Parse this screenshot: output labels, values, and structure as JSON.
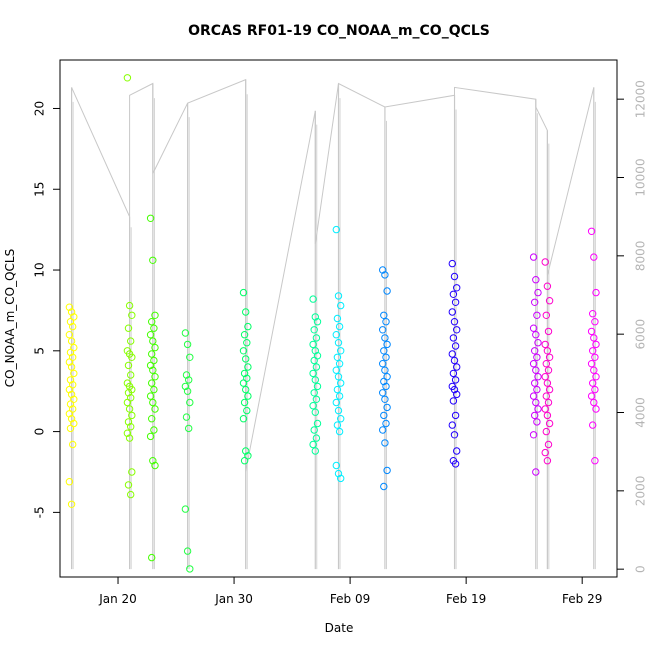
{
  "chart_data": {
    "type": "scatter",
    "title": "ORCAS RF01-19 CO_NOAA_m_CO_QCLS",
    "xlabel": "Date",
    "ylabel": "CO_NOAA_m_CO_QCLS",
    "x_ticks": [
      "Jan 20",
      "Jan 30",
      "Feb 09",
      "Feb 19",
      "Feb 29"
    ],
    "x_range": [
      "2016-01-15",
      "2016-03-03"
    ],
    "ylim": [
      -9,
      23
    ],
    "y_ticks": [
      -5,
      0,
      5,
      10,
      15,
      20
    ],
    "y2lim": [
      -200,
      13000
    ],
    "y2_ticks": [
      0,
      2000,
      4000,
      6000,
      8000,
      10000,
      12000
    ],
    "secondary_series_note": "altitude trace (gray line)",
    "colors": {
      "altitude_line": "#c8c8c8",
      "flights": [
        "#ffff00",
        "#88ff00",
        "#44ff00",
        "#22ff44",
        "#00ff66",
        "#00ff99",
        "#00ffcc",
        "#00eeff",
        "#0088ff",
        "#2200ff",
        "#cc00ff",
        "#ff00cc",
        "#ff00ff"
      ]
    },
    "flights": [
      {
        "x": "2016-01-16",
        "y": [
          7.7,
          7.4,
          7.1,
          6.8,
          6.5,
          6.0,
          5.6,
          5.2,
          4.9,
          4.6,
          4.3,
          4.0,
          3.6,
          3.2,
          2.9,
          2.6,
          2.3,
          2.0,
          1.7,
          1.4,
          1.1,
          0.8,
          0.5,
          0.2,
          -0.8,
          -3.1,
          -4.5
        ]
      },
      {
        "x": "2016-01-21",
        "y": [
          21.9,
          7.8,
          7.2,
          6.4,
          5.6,
          5.0,
          4.8,
          4.6,
          4.1,
          3.5,
          3.0,
          2.8,
          2.6,
          2.4,
          2.1,
          1.8,
          1.4,
          1.0,
          0.6,
          0.3,
          -0.1,
          -0.4,
          -2.5,
          -3.3,
          -3.9
        ]
      },
      {
        "x": "2016-01-23",
        "y": [
          13.2,
          10.6,
          7.2,
          6.8,
          6.4,
          6.0,
          5.6,
          5.2,
          4.8,
          4.4,
          4.1,
          3.8,
          3.4,
          3.0,
          2.6,
          2.2,
          1.8,
          1.4,
          0.8,
          0.1,
          -0.3,
          -1.8,
          -2.1,
          -7.8
        ]
      },
      {
        "x": "2016-01-26",
        "y": [
          6.1,
          5.4,
          4.6,
          3.5,
          3.2,
          2.8,
          2.5,
          1.8,
          0.9,
          0.2,
          -4.8,
          -7.4,
          -8.5
        ]
      },
      {
        "x": "2016-01-31",
        "y": [
          8.6,
          7.4,
          6.5,
          6.0,
          5.5,
          5.0,
          4.5,
          4.0,
          3.6,
          3.3,
          3.0,
          2.6,
          2.2,
          1.8,
          1.3,
          0.8,
          -1.2,
          -1.5,
          -1.8
        ]
      },
      {
        "x": "2016-02-06",
        "y": [
          8.2,
          7.1,
          6.8,
          6.3,
          5.8,
          5.4,
          5.0,
          4.7,
          4.4,
          4.0,
          3.6,
          3.2,
          2.8,
          2.4,
          2.0,
          1.6,
          1.2,
          0.5,
          0.1,
          -0.4,
          -0.8,
          -1.2
        ]
      },
      {
        "x": "2016-02-08",
        "y": [
          12.5,
          8.4,
          7.8,
          7.0,
          6.5,
          6.0,
          5.5,
          5.0,
          4.6,
          4.2,
          3.8,
          3.4,
          3.0,
          2.6,
          2.2,
          1.8,
          1.3,
          0.8,
          0.4,
          0.0,
          -2.1,
          -2.6,
          -2.9
        ]
      },
      {
        "x": "2016-02-12",
        "y": [
          10.0,
          9.7,
          8.7,
          7.2,
          6.8,
          6.3,
          5.8,
          5.4,
          5.0,
          4.6,
          4.2,
          3.8,
          3.4,
          3.1,
          2.8,
          2.4,
          2.0,
          1.5,
          1.0,
          0.5,
          0.1,
          -0.7,
          -2.4,
          -3.4
        ]
      },
      {
        "x": "2016-02-18",
        "y": [
          10.4,
          9.6,
          8.9,
          8.5,
          8.0,
          7.4,
          6.8,
          6.3,
          5.8,
          5.3,
          4.8,
          4.4,
          4.0,
          3.6,
          3.2,
          2.8,
          2.6,
          2.3,
          1.9,
          1.0,
          0.4,
          -0.2,
          -1.2,
          -1.8,
          -2.0
        ]
      },
      {
        "x": "2016-02-25",
        "y": [
          10.8,
          9.4,
          8.6,
          8.0,
          7.2,
          6.4,
          6.0,
          5.5,
          5.0,
          4.6,
          4.2,
          3.8,
          3.4,
          3.0,
          2.6,
          2.2,
          1.8,
          1.4,
          1.0,
          0.6,
          -0.2,
          -2.5
        ]
      },
      {
        "x": "2016-02-26",
        "y": [
          10.5,
          9.0,
          8.1,
          7.2,
          6.2,
          5.4,
          5.0,
          4.6,
          4.2,
          3.8,
          3.4,
          3.0,
          2.6,
          2.2,
          1.8,
          1.4,
          1.0,
          0.5,
          0.0,
          -0.8,
          -1.3,
          -1.8
        ]
      },
      {
        "x": "2016-03-01",
        "y": [
          12.4,
          10.8,
          8.6,
          7.3,
          6.8,
          6.2,
          5.8,
          5.4,
          5.0,
          4.6,
          4.2,
          3.8,
          3.4,
          3.0,
          2.6,
          2.2,
          1.8,
          1.4,
          0.4,
          -1.8
        ]
      }
    ],
    "altitude_trace": [
      {
        "x": "2016-01-16",
        "y": 12300
      },
      {
        "x": "2016-01-21",
        "y": 9000
      },
      {
        "x": "2016-01-21",
        "y": 12100
      },
      {
        "x": "2016-01-23",
        "y": 12400
      },
      {
        "x": "2016-01-23",
        "y": 10100
      },
      {
        "x": "2016-01-26",
        "y": 11900
      },
      {
        "x": "2016-01-31",
        "y": 12500
      },
      {
        "x": "2016-01-31",
        "y": 2500
      },
      {
        "x": "2016-02-06",
        "y": 11700
      },
      {
        "x": "2016-02-06",
        "y": 8300
      },
      {
        "x": "2016-02-08",
        "y": 12400
      },
      {
        "x": "2016-02-12",
        "y": 11800
      },
      {
        "x": "2016-02-18",
        "y": 12100
      },
      {
        "x": "2016-02-18",
        "y": 12300
      },
      {
        "x": "2016-02-25",
        "y": 12000
      },
      {
        "x": "2016-02-25",
        "y": 11800
      },
      {
        "x": "2016-02-26",
        "y": 11200
      },
      {
        "x": "2016-02-26",
        "y": 7500
      },
      {
        "x": "2016-03-01",
        "y": 12300
      }
    ],
    "altitude_min": 0,
    "grid": false,
    "legend": "none"
  }
}
